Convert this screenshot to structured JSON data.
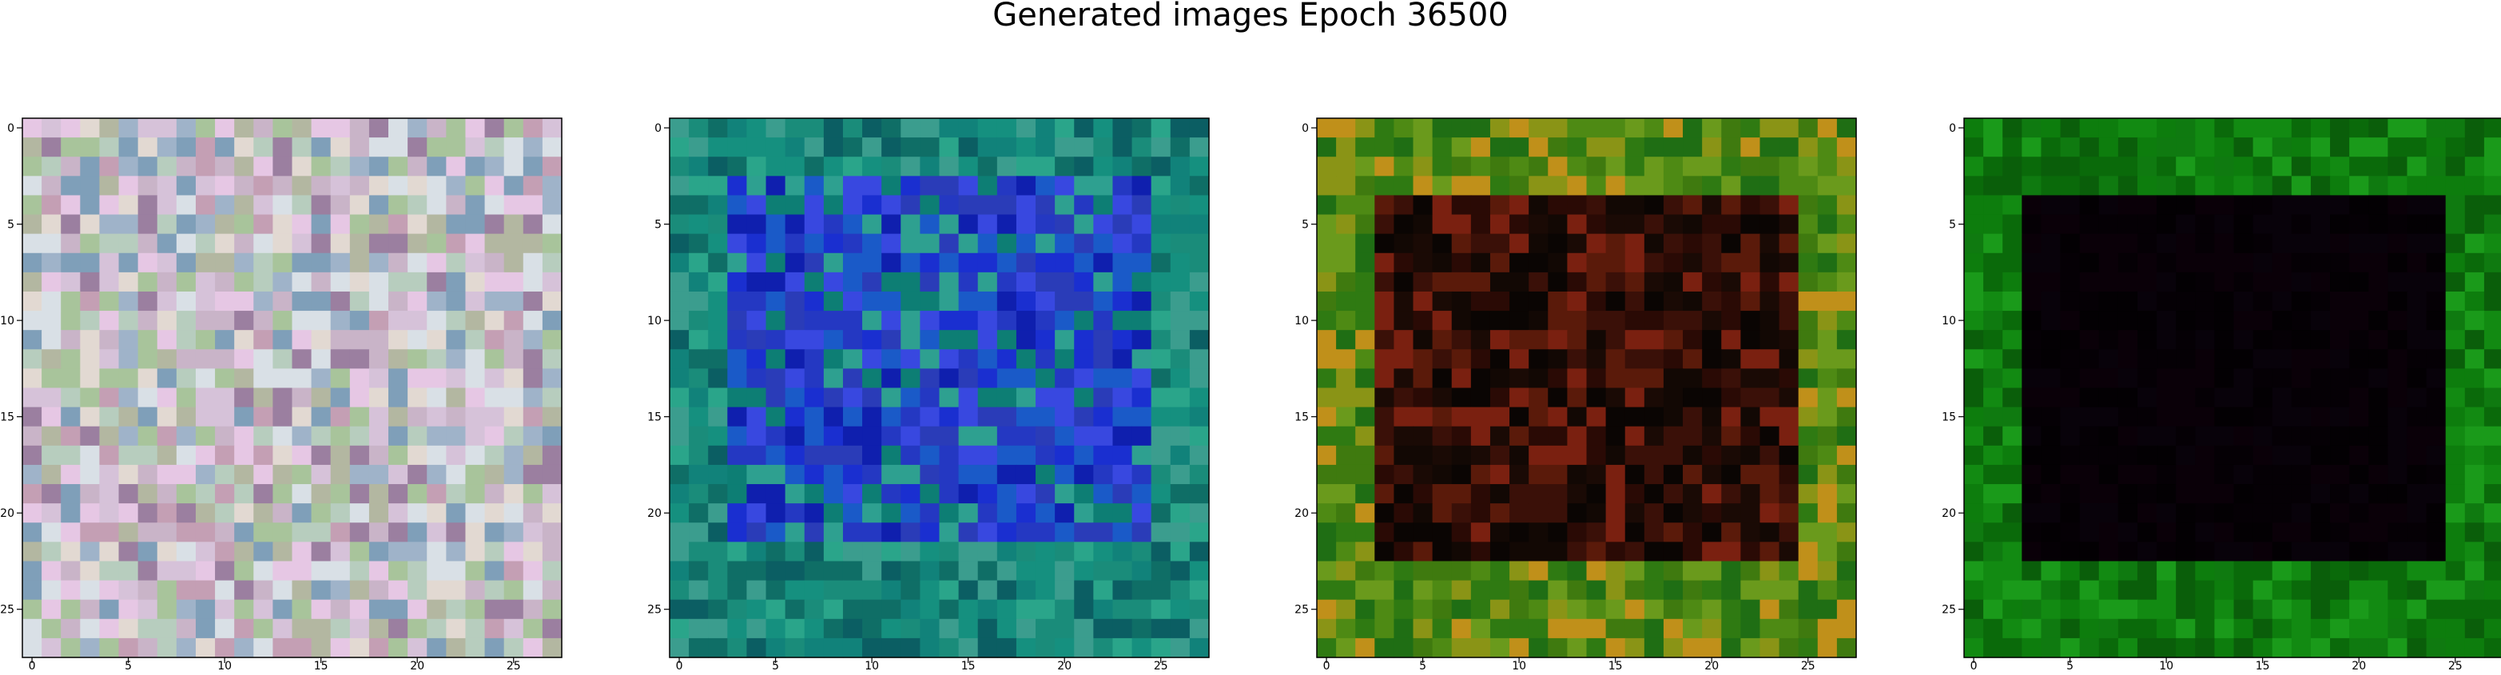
{
  "figure": {
    "title": "Generated images Epoch 36500"
  },
  "chart_data": [
    {
      "type": "heatmap",
      "xticks": [
        0,
        5,
        10,
        15,
        20,
        25
      ],
      "yticks": [
        0,
        5,
        10,
        15,
        20,
        25
      ],
      "xlim": [
        -0.5,
        27.5
      ],
      "ylim": [
        27.5,
        -0.5
      ],
      "grid": false,
      "size": 28,
      "pattern": "noise",
      "palette": [
        "#c9b4c8",
        "#b7cdbe",
        "#d6c2d9",
        "#9fb3c9",
        "#e2d9d2",
        "#a8c49b",
        "#c49fb4",
        "#7f9fb9",
        "#e6c7e4",
        "#b3b7a1",
        "#9b7fa0",
        "#d9e0e6"
      ]
    },
    {
      "type": "heatmap",
      "xticks": [
        0,
        5,
        10,
        15,
        20,
        25
      ],
      "yticks": [
        0,
        5,
        10,
        15,
        20,
        25
      ],
      "xlim": [
        -0.5,
        27.5
      ],
      "ylim": [
        27.5,
        -0.5
      ],
      "grid": false,
      "size": 28,
      "pattern": "frame",
      "border_palette": [
        "#1a8c7a",
        "#0f6e66",
        "#2aa58a",
        "#15907f",
        "#0b5e63",
        "#3b9d8e",
        "#11827a"
      ],
      "inner_palette": [
        "#1a2fd0",
        "#2438c2",
        "#0f1fae",
        "#3848e0",
        "#1a5ac8",
        "#2ea090",
        "#0d7e74",
        "#2a3cb8"
      ],
      "inner_box": [
        3,
        3,
        24,
        21
      ]
    },
    {
      "type": "heatmap",
      "xticks": [
        0,
        5,
        10,
        15,
        20,
        25
      ],
      "yticks": [
        0,
        5,
        10,
        15,
        20,
        25
      ],
      "xlim": [
        -0.5,
        27.5
      ],
      "ylim": [
        27.5,
        -0.5
      ],
      "grid": false,
      "size": 28,
      "pattern": "frame",
      "border_palette": [
        "#4e8a14",
        "#3f7a0f",
        "#6a9a1c",
        "#2f7a12",
        "#8a9416",
        "#c0901a",
        "#1f6e14"
      ],
      "inner_palette": [
        "#1a0a05",
        "#3a1008",
        "#0a0503",
        "#5a1a0a",
        "#2a0a05",
        "#7a2010",
        "#120804"
      ],
      "inner_box": [
        3,
        4,
        24,
        22
      ]
    },
    {
      "type": "heatmap",
      "xticks": [
        0,
        5,
        10,
        15,
        20,
        25
      ],
      "yticks": [
        0,
        5,
        10,
        15,
        20,
        25
      ],
      "xlim": [
        -0.5,
        27.5
      ],
      "ylim": [
        27.5,
        -0.5
      ],
      "grid": false,
      "size": 28,
      "pattern": "frame",
      "border_palette": [
        "#0f7a10",
        "#128a12",
        "#0a6a0a",
        "#1a9a1a",
        "#0d7d0d",
        "#0a5e0a"
      ],
      "inner_palette": [
        "#050005",
        "#0a0008",
        "#030003",
        "#08020a"
      ],
      "inner_box": [
        3,
        4,
        24,
        22
      ]
    }
  ]
}
